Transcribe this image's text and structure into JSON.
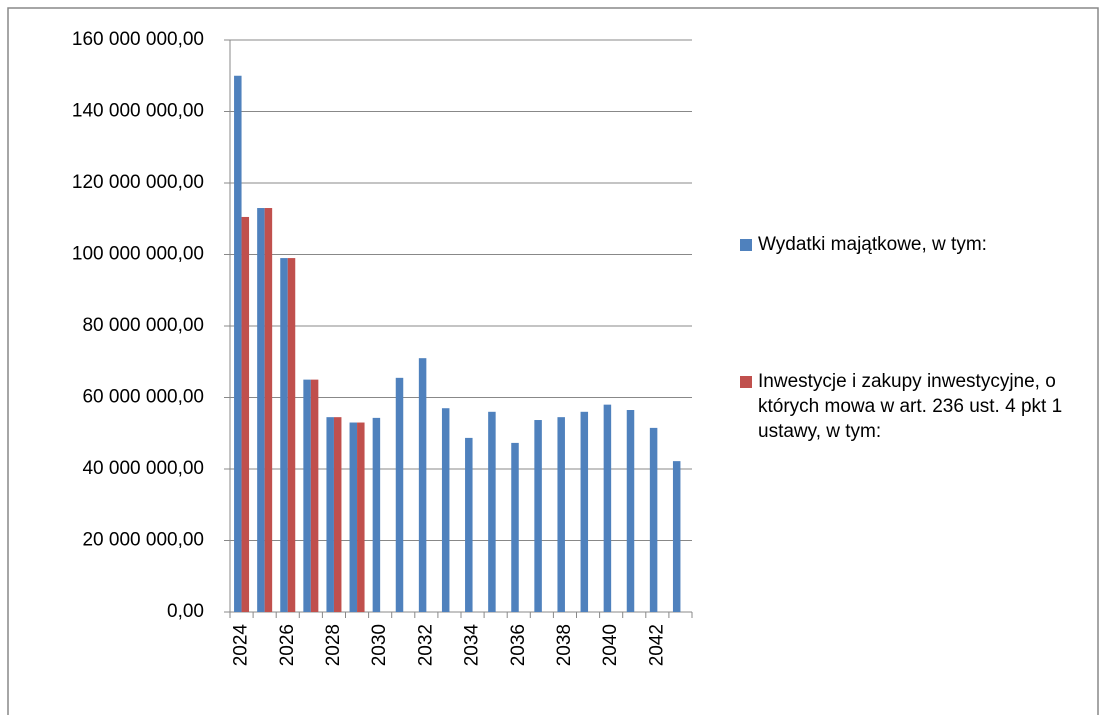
{
  "chart_data": {
    "type": "bar",
    "categories": [
      "2024",
      null,
      "2026",
      null,
      "2028",
      null,
      "2030",
      null,
      "2032",
      null,
      "2034",
      null,
      "2036",
      null,
      "2038",
      null,
      "2040",
      null,
      "2042",
      null
    ],
    "series": [
      {
        "name": "Wydatki majątkowe, w tym:",
        "color": "#4f81bd",
        "values": [
          150000000,
          113000000,
          99000000,
          65000000,
          54500000,
          53000000,
          54300000,
          65500000,
          71000000,
          57000000,
          48700000,
          56000000,
          47300000,
          53700000,
          54500000,
          56000000,
          58000000,
          56500000,
          51500000,
          42200000
        ]
      },
      {
        "name": "Inwestycje i zakupy inwestycyjne, o których mowa w art. 236 ust. 4 pkt 1 ustawy, w tym:",
        "color": "#c0504d",
        "values": [
          110500000,
          113000000,
          99000000,
          65000000,
          54500000,
          53000000,
          null,
          null,
          null,
          null,
          null,
          null,
          null,
          null,
          null,
          null,
          null,
          null,
          null,
          null
        ]
      }
    ],
    "ylim": [
      0,
      160000000
    ],
    "yticks": [
      {
        "value": 0,
        "label": "0,00"
      },
      {
        "value": 20000000,
        "label": "20 000 000,00"
      },
      {
        "value": 40000000,
        "label": "40 000 000,00"
      },
      {
        "value": 60000000,
        "label": "60 000 000,00"
      },
      {
        "value": 80000000,
        "label": "80 000 000,00"
      },
      {
        "value": 100000000,
        "label": "100 000 000,00"
      },
      {
        "value": 120000000,
        "label": "120 000 000,00"
      },
      {
        "value": 140000000,
        "label": "140 000 000,00"
      },
      {
        "value": 160000000,
        "label": "160 000 000,00"
      }
    ],
    "grid": true,
    "legend": "right"
  }
}
